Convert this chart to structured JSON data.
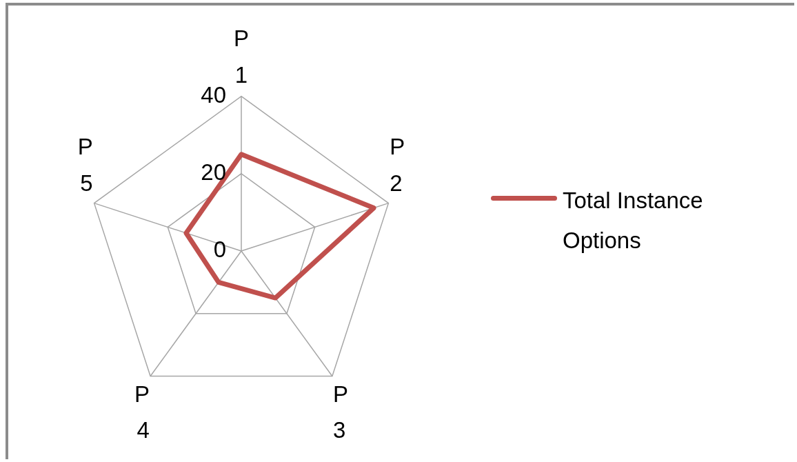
{
  "chart_data": {
    "type": "radar",
    "categories": [
      "P 1",
      "P 2",
      "P 3",
      "P 4",
      "P 5"
    ],
    "series": [
      {
        "name": "Total Instance Options",
        "color": "#c0504d",
        "values": [
          25,
          36,
          15,
          10,
          15
        ]
      }
    ],
    "ylim": [
      0,
      40
    ],
    "yticks": [
      0,
      20,
      40
    ],
    "grid": true,
    "legend": "right",
    "marker": "none"
  }
}
